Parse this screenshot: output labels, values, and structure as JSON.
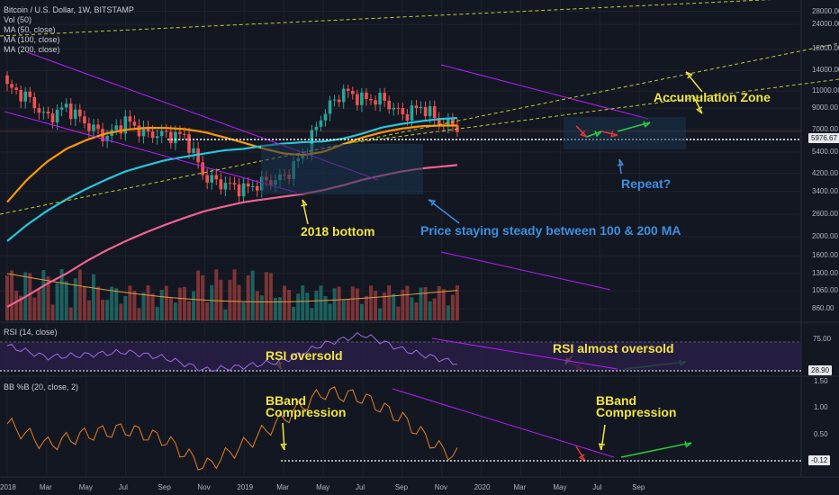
{
  "header": {
    "title": "Bitcoin / U.S. Dollar, 1W, BITSTAMP",
    "vol_legend": "Vol (50)",
    "ma_legends": [
      "MA (50, close)",
      "MA (100, close)",
      "MA (200, close)"
    ],
    "rsi_legend": "RSI (14, close)",
    "bb_legend": "BB %B (20, close, 2)"
  },
  "annotations": {
    "accumulation_zone": "Accumulation Zone",
    "repeat": "Repeat?",
    "bottom_2018": "2018 bottom",
    "price_steady": "Price staying steady between 100 & 200 MA",
    "rsi_oversold": "RSI oversold",
    "rsi_almost_oversold": "RSI almost oversold",
    "bband_left_1": "BBand",
    "bband_left_2": "Compression",
    "bband_right_1": "BBand",
    "bband_right_2": "Compression"
  },
  "price_axis": {
    "ticks": [
      "28000.00",
      "24000.00",
      "18000.00",
      "14000.00",
      "11000.00",
      "9000.00",
      "7000.00",
      "5400.00",
      "4200.00",
      "3400.00",
      "2600.00",
      "2000.00",
      "1600.00",
      "1300.00",
      "1060.00",
      "860.00"
    ],
    "current_price_label": "5976.67"
  },
  "rsi_axis": {
    "ticks": [
      "75.00"
    ],
    "current_label": "28.90"
  },
  "bb_axis": {
    "ticks": [
      "1.50",
      "1.00",
      "0.50",
      "0.00"
    ],
    "current_label": "-0.12"
  },
  "time_axis": {
    "labels": [
      "2018",
      "Mar",
      "May",
      "Jul",
      "Sep",
      "Nov",
      "2019",
      "Mar",
      "May",
      "Jul",
      "Sep",
      "Nov",
      "2020",
      "Mar",
      "May",
      "Jul",
      "Sep"
    ]
  },
  "colors": {
    "background": "#131722",
    "candle_up": "#26a69a",
    "candle_down": "#ef5350",
    "ma50": "#ff9800",
    "ma100": "#26c6da",
    "ma200": "#f06292",
    "trendline": "#b71cff",
    "channel_dashed": "#c0ca33",
    "annotation_yellow": "#f0e442",
    "annotation_blue": "#3d8fe0",
    "arrow_green": "#2ecc40",
    "arrow_red": "#e53935",
    "rsi_line": "#9c6ade",
    "bb_line": "#e67e22"
  },
  "chart_data": [
    {
      "type": "line",
      "title": "Bitcoin / U.S. Dollar, 1W, BITSTAMP",
      "x": [
        "2018-01",
        "2018-02",
        "2018-03",
        "2018-04",
        "2018-05",
        "2018-06",
        "2018-07",
        "2018-08",
        "2018-09",
        "2018-10",
        "2018-11",
        "2018-12",
        "2019-01",
        "2019-02",
        "2019-03",
        "2019-04",
        "2019-05",
        "2019-06",
        "2019-07",
        "2019-08",
        "2019-09",
        "2019-10",
        "2019-11",
        "2019-12"
      ],
      "series": [
        {
          "name": "Price",
          "values": [
            11500,
            10300,
            8000,
            9200,
            7500,
            6400,
            7800,
            6700,
            6600,
            6500,
            4000,
            3700,
            3500,
            3800,
            4000,
            5300,
            8500,
            11000,
            10000,
            10000,
            8300,
            9200,
            7500,
            7300
          ]
        },
        {
          "name": "MA (50, close)",
          "values": [
            3000,
            3900,
            4800,
            5600,
            6200,
            6700,
            7000,
            7150,
            7150,
            7050,
            6800,
            6400,
            6000,
            5600,
            5300,
            5200,
            5400,
            5900,
            6400,
            6800,
            7100,
            7300,
            7350,
            7350
          ]
        },
        {
          "name": "MA (100, close)",
          "values": [
            1900,
            2300,
            2700,
            3100,
            3500,
            3900,
            4300,
            4600,
            4900,
            5100,
            5300,
            5500,
            5600,
            5800,
            5950,
            6050,
            6100,
            6300,
            6700,
            7200,
            7500,
            7750,
            7950,
            8050
          ]
        },
        {
          "name": "MA (200, close)",
          "values": [
            880,
            1000,
            1150,
            1300,
            1500,
            1700,
            1900,
            2100,
            2300,
            2500,
            2700,
            2850,
            3000,
            3100,
            3200,
            3300,
            3450,
            3650,
            3900,
            4100,
            4300,
            4450,
            4550,
            4650
          ]
        }
      ],
      "ylabel": "",
      "xlabel": "",
      "ylim": [
        800,
        30000
      ],
      "y_scale": "log",
      "grid": true
    },
    {
      "type": "line",
      "title": "RSI (14, close)",
      "x": [
        "2018-01",
        "2018-03",
        "2018-05",
        "2018-07",
        "2018-09",
        "2018-11",
        "2019-01",
        "2019-03",
        "2019-05",
        "2019-07",
        "2019-09",
        "2019-11",
        "2019-12"
      ],
      "series": [
        {
          "name": "RSI",
          "values": [
            60,
            45,
            48,
            52,
            44,
            28,
            33,
            40,
            62,
            75,
            55,
            42,
            30
          ]
        }
      ],
      "ylim": [
        20,
        85
      ]
    },
    {
      "type": "line",
      "title": "BB %B (20, close, 2)",
      "x": [
        "2018-01",
        "2018-03",
        "2018-05",
        "2018-07",
        "2018-09",
        "2018-11",
        "2019-01",
        "2019-03",
        "2019-05",
        "2019-07",
        "2019-09",
        "2019-11",
        "2019-12"
      ],
      "series": [
        {
          "name": "BB %B",
          "values": [
            0.7,
            0.3,
            0.5,
            0.6,
            0.4,
            -0.12,
            0.3,
            0.8,
            1.3,
            1.2,
            0.8,
            0.2,
            -0.05
          ]
        }
      ],
      "ylim": [
        -0.25,
        1.55
      ]
    }
  ]
}
